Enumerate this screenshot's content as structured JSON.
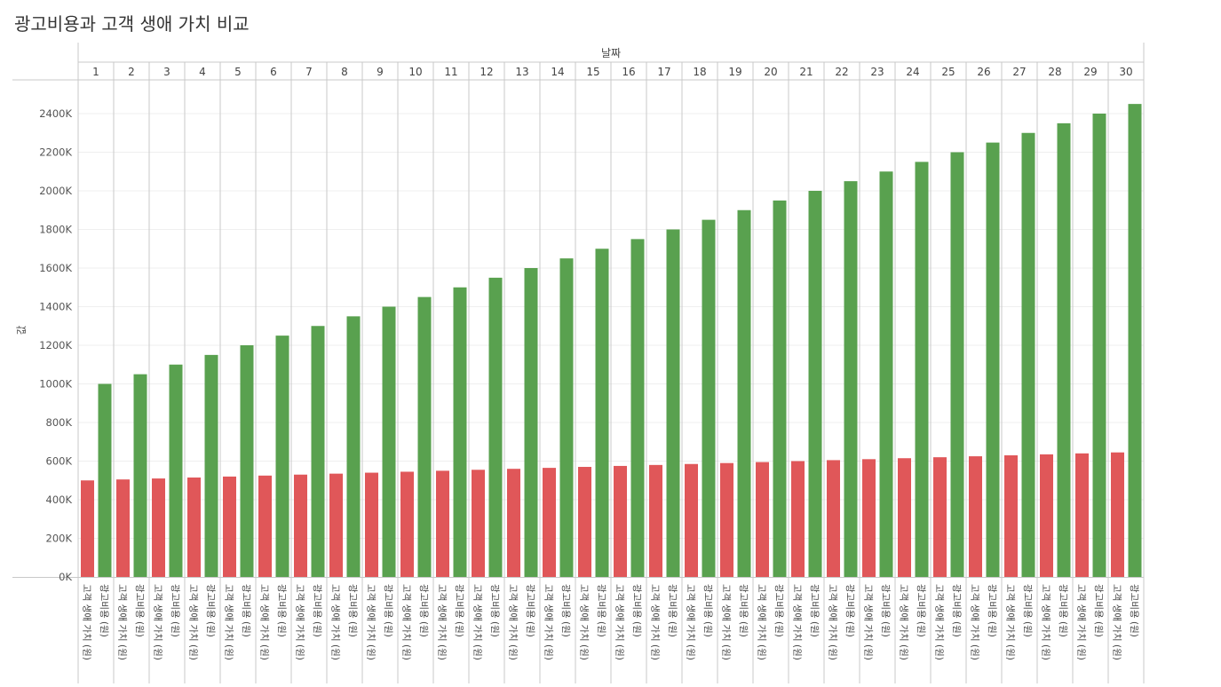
{
  "title": "광고비용과 고객 생애 가치 비교",
  "colors": {
    "ad_cost": "#e05759",
    "clv": "#59a14f"
  },
  "chart_data": {
    "type": "bar",
    "title": "광고비용과 고객 생애 가치 비교",
    "column_header": "날짜",
    "ylabel": "값",
    "ylim": [
      0,
      2500000
    ],
    "y_ticks": [
      0,
      200000,
      400000,
      600000,
      800000,
      1000000,
      1200000,
      1400000,
      1600000,
      1800000,
      2000000,
      2200000,
      2400000
    ],
    "y_tick_labels": [
      "0K",
      "200K",
      "400K",
      "600K",
      "800K",
      "1000K",
      "1200K",
      "1400K",
      "1600K",
      "1800K",
      "2000K",
      "2200K",
      "2400K"
    ],
    "grid": true,
    "categories": [
      "1",
      "2",
      "3",
      "4",
      "5",
      "6",
      "7",
      "8",
      "9",
      "10",
      "11",
      "12",
      "13",
      "14",
      "15",
      "16",
      "17",
      "18",
      "19",
      "20",
      "21",
      "22",
      "23",
      "24",
      "25",
      "26",
      "27",
      "28",
      "29",
      "30"
    ],
    "bar_labels": [
      "고객 생애 가치 (원)",
      "광고비용 (원)"
    ],
    "series": [
      {
        "name": "고객 생애 가치 (원)",
        "color": "#e05759",
        "values": [
          500000,
          505000,
          510000,
          515000,
          520000,
          525000,
          530000,
          535000,
          540000,
          545000,
          550000,
          555000,
          560000,
          565000,
          570000,
          575000,
          580000,
          585000,
          590000,
          595000,
          600000,
          605000,
          610000,
          615000,
          620000,
          625000,
          630000,
          635000,
          640000,
          645000
        ]
      },
      {
        "name": "광고비용 (원)",
        "color": "#59a14f",
        "values": [
          1000000,
          1050000,
          1100000,
          1150000,
          1200000,
          1250000,
          1300000,
          1350000,
          1400000,
          1450000,
          1500000,
          1550000,
          1600000,
          1650000,
          1700000,
          1750000,
          1800000,
          1850000,
          1900000,
          1950000,
          2000000,
          2050000,
          2100000,
          2150000,
          2200000,
          2250000,
          2300000,
          2350000,
          2400000,
          2450000
        ]
      }
    ]
  }
}
